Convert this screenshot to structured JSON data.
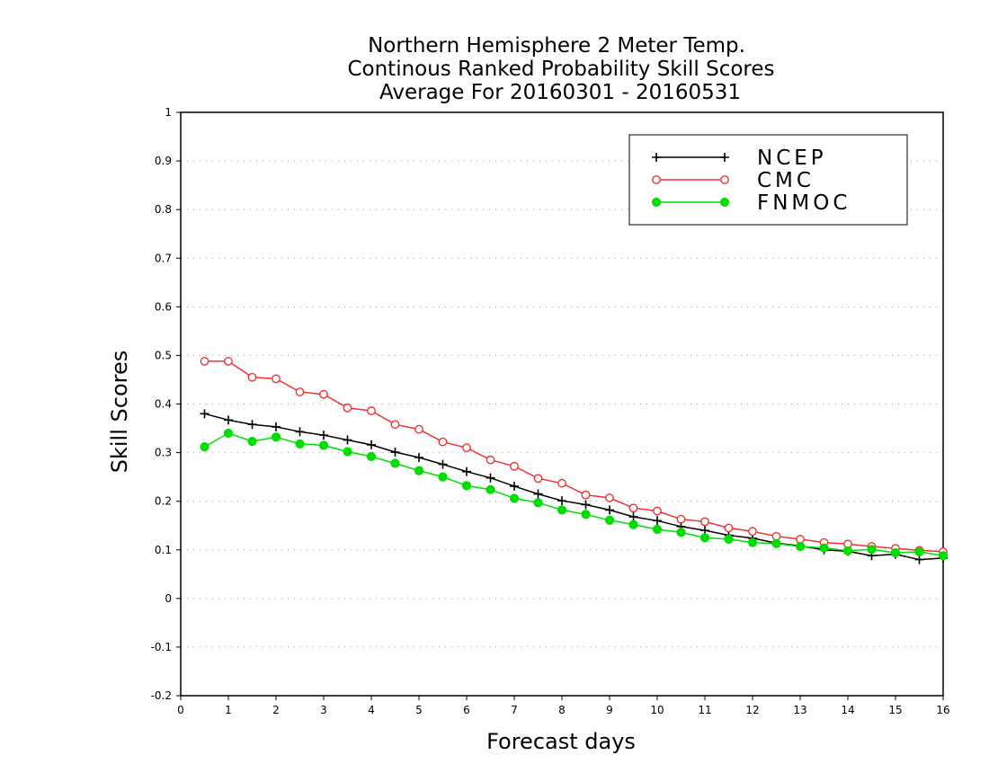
{
  "chart_data": {
    "type": "line",
    "title": [
      "Northern Hemisphere 2 Meter Temp.",
      "Continous Ranked Probability Skill Scores",
      "Average For 20160301 - 20160531"
    ],
    "xlabel": "Forecast days",
    "ylabel": "Skill Scores",
    "xlim": [
      0,
      16
    ],
    "ylim": [
      -0.2,
      1
    ],
    "xticks": [
      0,
      1,
      2,
      3,
      4,
      5,
      6,
      7,
      8,
      9,
      10,
      11,
      12,
      13,
      14,
      15,
      16
    ],
    "xtick_labels": [
      "0",
      "1",
      "2",
      "3",
      "4",
      "5",
      "6",
      "7",
      "8",
      "9",
      "10",
      "11",
      "12",
      "13",
      "14",
      "15",
      "16"
    ],
    "yticks": [
      -0.2,
      -0.1,
      0,
      0.1,
      0.2,
      0.3,
      0.4,
      0.5,
      0.6,
      0.7,
      0.8,
      0.9,
      1
    ],
    "ytick_labels": [
      "-0.2",
      "-0.1",
      "0",
      "0.1",
      "0.2",
      "0.3",
      "0.4",
      "0.5",
      "0.6",
      "0.7",
      "0.8",
      "0.9",
      "1"
    ],
    "grid": "horizontal dotted",
    "legend_position": "top-right",
    "x": [
      0.5,
      1,
      1.5,
      2,
      2.5,
      3,
      3.5,
      4,
      4.5,
      5,
      5.5,
      6,
      6.5,
      7,
      7.5,
      8,
      8.5,
      9,
      9.5,
      10,
      10.5,
      11,
      11.5,
      12,
      12.5,
      13,
      13.5,
      14,
      14.5,
      15,
      15.5,
      16
    ],
    "series": [
      {
        "name": "NCEP",
        "color": "#000000",
        "marker": "plus",
        "values": [
          0.38,
          0.367,
          0.358,
          0.353,
          0.343,
          0.336,
          0.326,
          0.316,
          0.301,
          0.29,
          0.276,
          0.261,
          0.248,
          0.231,
          0.215,
          0.201,
          0.193,
          0.182,
          0.168,
          0.16,
          0.148,
          0.14,
          0.13,
          0.124,
          0.114,
          0.108,
          0.1,
          0.097,
          0.088,
          0.091,
          0.08,
          0.083
        ]
      },
      {
        "name": "CMC",
        "color": "#ee3333",
        "marker": "open-circle",
        "values": [
          0.488,
          0.488,
          0.455,
          0.452,
          0.425,
          0.42,
          0.392,
          0.386,
          0.358,
          0.348,
          0.322,
          0.31,
          0.285,
          0.272,
          0.247,
          0.237,
          0.213,
          0.207,
          0.186,
          0.18,
          0.163,
          0.158,
          0.145,
          0.138,
          0.128,
          0.122,
          0.115,
          0.112,
          0.107,
          0.103,
          0.099,
          0.096
        ]
      },
      {
        "name": "FNMOC",
        "color": "#00dd00",
        "marker": "filled-circle",
        "values": [
          0.312,
          0.34,
          0.323,
          0.332,
          0.318,
          0.315,
          0.302,
          0.292,
          0.278,
          0.263,
          0.25,
          0.232,
          0.224,
          0.206,
          0.197,
          0.182,
          0.173,
          0.161,
          0.152,
          0.142,
          0.136,
          0.125,
          0.122,
          0.115,
          0.113,
          0.107,
          0.104,
          0.098,
          0.101,
          0.094,
          0.096,
          0.088
        ]
      }
    ]
  }
}
